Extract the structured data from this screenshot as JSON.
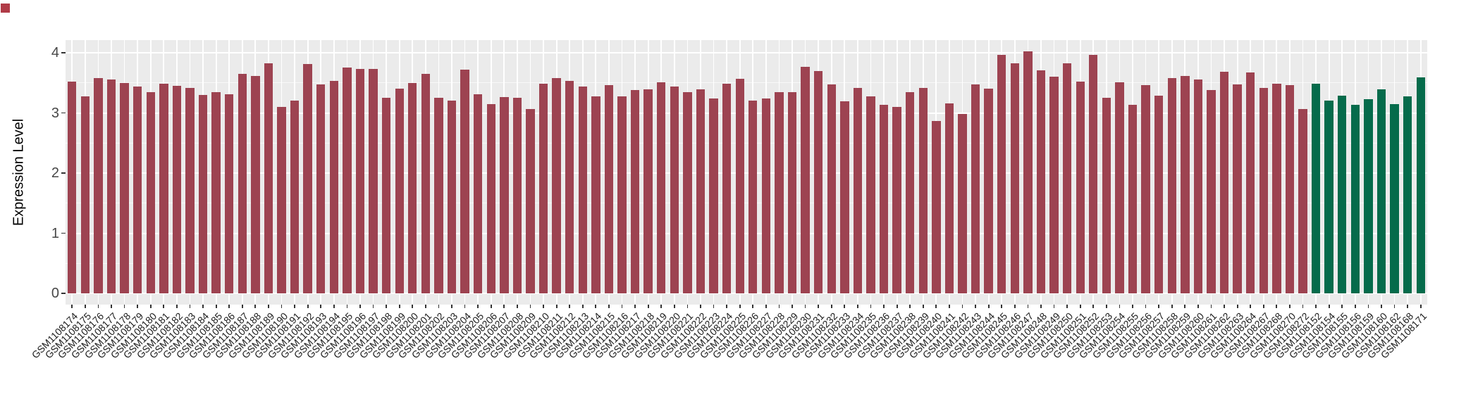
{
  "chart_data": {
    "type": "bar",
    "title": "",
    "xlabel": "",
    "ylabel": "Expression Level",
    "ylim": [
      0,
      4.21
    ],
    "yticks": [
      0,
      1,
      2,
      3,
      4
    ],
    "grid": "on",
    "legend_position": "none",
    "panel_background": "#EBEBEB",
    "gridline_color": "#FFFFFF",
    "bar_colors": {
      "maroon": "#9D4351",
      "green": "#056B4B"
    },
    "corner_marker_color": "#B03B47",
    "bars": [
      {
        "label": "GSM1108174",
        "value": 3.52,
        "color": "maroon"
      },
      {
        "label": "GSM1108175",
        "value": 3.28,
        "color": "maroon"
      },
      {
        "label": "GSM1108176",
        "value": 3.58,
        "color": "maroon"
      },
      {
        "label": "GSM1108177",
        "value": 3.56,
        "color": "maroon"
      },
      {
        "label": "GSM1108178",
        "value": 3.5,
        "color": "maroon"
      },
      {
        "label": "GSM1108179",
        "value": 3.44,
        "color": "maroon"
      },
      {
        "label": "GSM1108180",
        "value": 3.34,
        "color": "maroon"
      },
      {
        "label": "GSM1108181",
        "value": 3.49,
        "color": "maroon"
      },
      {
        "label": "GSM1108182",
        "value": 3.45,
        "color": "maroon"
      },
      {
        "label": "GSM1108183",
        "value": 3.42,
        "color": "maroon"
      },
      {
        "label": "GSM1108184",
        "value": 3.3,
        "color": "maroon"
      },
      {
        "label": "GSM1108185",
        "value": 3.35,
        "color": "maroon"
      },
      {
        "label": "GSM1108186",
        "value": 3.31,
        "color": "maroon"
      },
      {
        "label": "GSM1108187",
        "value": 3.65,
        "color": "maroon"
      },
      {
        "label": "GSM1108188",
        "value": 3.61,
        "color": "maroon"
      },
      {
        "label": "GSM1108189",
        "value": 3.82,
        "color": "maroon"
      },
      {
        "label": "GSM1108190",
        "value": 3.1,
        "color": "maroon"
      },
      {
        "label": "GSM1108191",
        "value": 3.2,
        "color": "maroon"
      },
      {
        "label": "GSM1108192",
        "value": 3.81,
        "color": "maroon"
      },
      {
        "label": "GSM1108193",
        "value": 3.47,
        "color": "maroon"
      },
      {
        "label": "GSM1108194",
        "value": 3.53,
        "color": "maroon"
      },
      {
        "label": "GSM1108195",
        "value": 3.75,
        "color": "maroon"
      },
      {
        "label": "GSM1108196",
        "value": 3.73,
        "color": "maroon"
      },
      {
        "label": "GSM1108197",
        "value": 3.73,
        "color": "maroon"
      },
      {
        "label": "GSM1108198",
        "value": 3.25,
        "color": "maroon"
      },
      {
        "label": "GSM1108199",
        "value": 3.4,
        "color": "maroon"
      },
      {
        "label": "GSM1108200",
        "value": 3.5,
        "color": "maroon"
      },
      {
        "label": "GSM1108201",
        "value": 3.65,
        "color": "maroon"
      },
      {
        "label": "GSM1108202",
        "value": 3.25,
        "color": "maroon"
      },
      {
        "label": "GSM1108203",
        "value": 3.2,
        "color": "maroon"
      },
      {
        "label": "GSM1108204",
        "value": 3.72,
        "color": "maroon"
      },
      {
        "label": "GSM1108205",
        "value": 3.31,
        "color": "maroon"
      },
      {
        "label": "GSM1108206",
        "value": 3.15,
        "color": "maroon"
      },
      {
        "label": "GSM1108207",
        "value": 3.26,
        "color": "maroon"
      },
      {
        "label": "GSM1108208",
        "value": 3.25,
        "color": "maroon"
      },
      {
        "label": "GSM1108209",
        "value": 3.06,
        "color": "maroon"
      },
      {
        "label": "GSM1108210",
        "value": 3.48,
        "color": "maroon"
      },
      {
        "label": "GSM1108211",
        "value": 3.58,
        "color": "maroon"
      },
      {
        "label": "GSM1108212",
        "value": 3.53,
        "color": "maroon"
      },
      {
        "label": "GSM1108213",
        "value": 3.44,
        "color": "maroon"
      },
      {
        "label": "GSM1108214",
        "value": 3.27,
        "color": "maroon"
      },
      {
        "label": "GSM1108215",
        "value": 3.46,
        "color": "maroon"
      },
      {
        "label": "GSM1108216",
        "value": 3.27,
        "color": "maroon"
      },
      {
        "label": "GSM1108217",
        "value": 3.38,
        "color": "maroon"
      },
      {
        "label": "GSM1108218",
        "value": 3.39,
        "color": "maroon"
      },
      {
        "label": "GSM1108219",
        "value": 3.51,
        "color": "maroon"
      },
      {
        "label": "GSM1108220",
        "value": 3.44,
        "color": "maroon"
      },
      {
        "label": "GSM1108221",
        "value": 3.34,
        "color": "maroon"
      },
      {
        "label": "GSM1108222",
        "value": 3.39,
        "color": "maroon"
      },
      {
        "label": "GSM1108223",
        "value": 3.24,
        "color": "maroon"
      },
      {
        "label": "GSM1108224",
        "value": 3.49,
        "color": "maroon"
      },
      {
        "label": "GSM1108225",
        "value": 3.57,
        "color": "maroon"
      },
      {
        "label": "GSM1108226",
        "value": 3.2,
        "color": "maroon"
      },
      {
        "label": "GSM1108227",
        "value": 3.24,
        "color": "maroon"
      },
      {
        "label": "GSM1108228",
        "value": 3.35,
        "color": "maroon"
      },
      {
        "label": "GSM1108229",
        "value": 3.35,
        "color": "maroon"
      },
      {
        "label": "GSM1108230",
        "value": 3.77,
        "color": "maroon"
      },
      {
        "label": "GSM1108231",
        "value": 3.7,
        "color": "maroon"
      },
      {
        "label": "GSM1108232",
        "value": 3.47,
        "color": "maroon"
      },
      {
        "label": "GSM1108233",
        "value": 3.19,
        "color": "maroon"
      },
      {
        "label": "GSM1108234",
        "value": 3.42,
        "color": "maroon"
      },
      {
        "label": "GSM1108235",
        "value": 3.28,
        "color": "maroon"
      },
      {
        "label": "GSM1108236",
        "value": 3.14,
        "color": "maroon"
      },
      {
        "label": "GSM1108237",
        "value": 3.1,
        "color": "maroon"
      },
      {
        "label": "GSM1108238",
        "value": 3.35,
        "color": "maroon"
      },
      {
        "label": "GSM1108239",
        "value": 3.41,
        "color": "maroon"
      },
      {
        "label": "GSM1108240",
        "value": 2.87,
        "color": "maroon"
      },
      {
        "label": "GSM1108241",
        "value": 3.16,
        "color": "maroon"
      },
      {
        "label": "GSM1108242",
        "value": 2.98,
        "color": "maroon"
      },
      {
        "label": "GSM1108243",
        "value": 3.47,
        "color": "maroon"
      },
      {
        "label": "GSM1108244",
        "value": 3.4,
        "color": "maroon"
      },
      {
        "label": "GSM1108245",
        "value": 3.96,
        "color": "maroon"
      },
      {
        "label": "GSM1108246",
        "value": 3.82,
        "color": "maroon"
      },
      {
        "label": "GSM1108247",
        "value": 4.02,
        "color": "maroon"
      },
      {
        "label": "GSM1108248",
        "value": 3.71,
        "color": "maroon"
      },
      {
        "label": "GSM1108249",
        "value": 3.6,
        "color": "maroon"
      },
      {
        "label": "GSM1108250",
        "value": 3.82,
        "color": "maroon"
      },
      {
        "label": "GSM1108251",
        "value": 3.52,
        "color": "maroon"
      },
      {
        "label": "GSM1108252",
        "value": 3.97,
        "color": "maroon"
      },
      {
        "label": "GSM1108253",
        "value": 3.25,
        "color": "maroon"
      },
      {
        "label": "GSM1108254",
        "value": 3.51,
        "color": "maroon"
      },
      {
        "label": "GSM1108255",
        "value": 3.13,
        "color": "maroon"
      },
      {
        "label": "GSM1108256",
        "value": 3.46,
        "color": "maroon"
      },
      {
        "label": "GSM1108257",
        "value": 3.29,
        "color": "maroon"
      },
      {
        "label": "GSM1108258",
        "value": 3.58,
        "color": "maroon"
      },
      {
        "label": "GSM1108259",
        "value": 3.62,
        "color": "maroon"
      },
      {
        "label": "GSM1108260",
        "value": 3.56,
        "color": "maroon"
      },
      {
        "label": "GSM1108261",
        "value": 3.38,
        "color": "maroon"
      },
      {
        "label": "GSM1108262",
        "value": 3.69,
        "color": "maroon"
      },
      {
        "label": "GSM1108263",
        "value": 3.47,
        "color": "maroon"
      },
      {
        "label": "GSM1108264",
        "value": 3.67,
        "color": "maroon"
      },
      {
        "label": "GSM1108267",
        "value": 3.42,
        "color": "maroon"
      },
      {
        "label": "GSM1108268",
        "value": 3.49,
        "color": "maroon"
      },
      {
        "label": "GSM1108270",
        "value": 3.46,
        "color": "maroon"
      },
      {
        "label": "GSM1108272",
        "value": 3.06,
        "color": "maroon"
      },
      {
        "label": "GSM1108152",
        "value": 3.49,
        "color": "green"
      },
      {
        "label": "GSM1108154",
        "value": 3.21,
        "color": "green"
      },
      {
        "label": "GSM1108155",
        "value": 3.29,
        "color": "green"
      },
      {
        "label": "GSM1108156",
        "value": 3.13,
        "color": "green"
      },
      {
        "label": "GSM1108159",
        "value": 3.23,
        "color": "green"
      },
      {
        "label": "GSM1108160",
        "value": 3.39,
        "color": "green"
      },
      {
        "label": "GSM1108162",
        "value": 3.15,
        "color": "green"
      },
      {
        "label": "GSM1108168",
        "value": 3.28,
        "color": "green"
      },
      {
        "label": "GSM1108171",
        "value": 3.59,
        "color": "green"
      }
    ]
  }
}
